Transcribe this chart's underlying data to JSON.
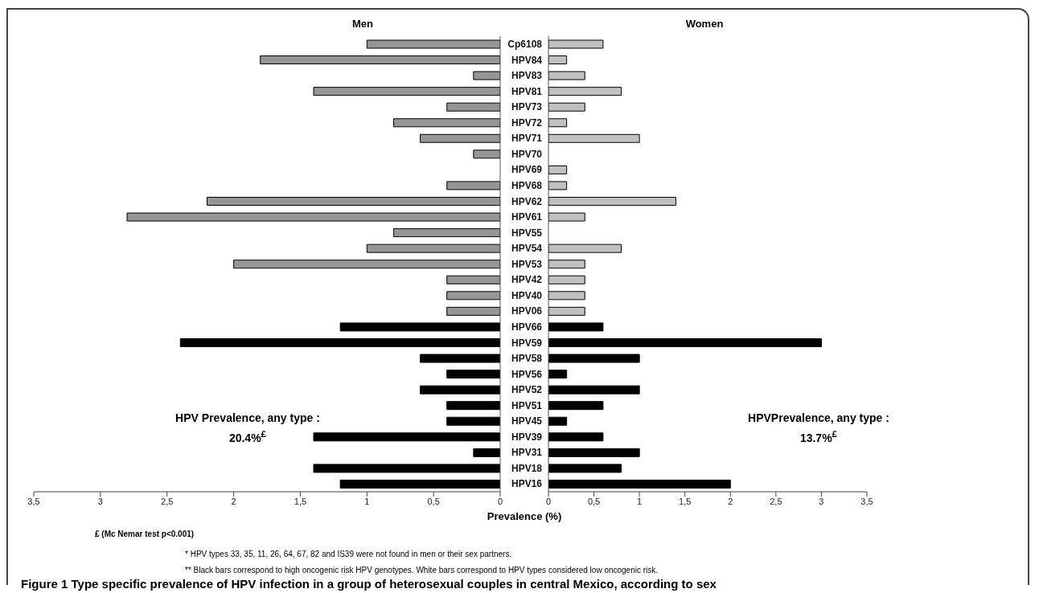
{
  "chart_data": [
    {
      "type": "bar",
      "orientation": "horizontal",
      "title": "Men",
      "tick_labels": "x",
      "values": [
        1.0,
        1.8,
        0.2,
        1.4,
        0.4,
        0.8,
        0.6,
        0.2,
        0,
        0.4,
        2.2,
        2.8,
        0.8,
        1.0,
        2.0,
        0.4,
        0.4,
        0.4,
        1.2,
        2.4,
        0.6,
        0.4,
        0.6,
        0.4,
        0.4,
        1.4,
        0.2,
        1.4,
        1.2
      ],
      "colors": [
        "#969696",
        "#969696",
        "#969696",
        "#969696",
        "#969696",
        "#969696",
        "#969696",
        "#969696",
        "#969696",
        "#969696",
        "#969696",
        "#969696",
        "#969696",
        "#969696",
        "#969696",
        "#969696",
        "#969696",
        "#969696",
        "#000000",
        "#000000",
        "#000000",
        "#000000",
        "#000000",
        "#000000",
        "#000000",
        "#000000",
        "#000000",
        "#000000",
        "#000000"
      ],
      "xlim": [
        3.5,
        0
      ],
      "xticks": [
        {
          "value": 3.5,
          "label": "3,5"
        },
        3,
        {
          "value": 2.5,
          "label": "2,5"
        },
        2,
        {
          "value": 1.5,
          "label": "1,5"
        },
        1,
        {
          "value": 0.5,
          "label": "0,5"
        },
        0
      ],
      "annotations": [
        "HPV Prevalence, any type : 20.4%$^{£}$",
        "£  (Mc Nemar test  p<0.001)",
        "* HPV types  33, 35, 11, 26, 64,  67, 82 and IS39 were not found in men or their sex partners.",
        "** Black bars correspond to high oncogenic risk HPV genotypes. White bars correspond  to HPV types considered  low oncogenic risk.",
        "Figure 1 Type specific prevalence of HPV infection in a group of heterosexual couples in central Mexico, according to sex"
      ]
    },
    {
      "type": "bar",
      "orientation": "horizontal",
      "title": "Women",
      "xlabel": "Prevalence (%)",
      "categories": [
        "Cp6108",
        "HPV84",
        "HPV83",
        "HPV81",
        "HPV73",
        "HPV72",
        "HPV71",
        "HPV70",
        "HPV69",
        "HPV68",
        "HPV62",
        "HPV61",
        "HPV55",
        "HPV54",
        "HPV53",
        "HPV42",
        "HPV40",
        "HPV06",
        "HPV66",
        "HPV59",
        "HPV58",
        "HPV56",
        "HPV52",
        "HPV51",
        "HPV45",
        "HPV39",
        "HPV31",
        "HPV18",
        "HPV16"
      ],
      "values": [
        0.6,
        0.2,
        0.4,
        0.8,
        0.4,
        0.2,
        1.0,
        0,
        0.2,
        0.2,
        1.4,
        0.4,
        0,
        0.8,
        0.4,
        0.4,
        0.4,
        0.4,
        0.6,
        3.0,
        1.0,
        0.2,
        1.0,
        0.6,
        0.2,
        0.6,
        1.0,
        0.8,
        2.0
      ],
      "colors": [
        "#c0c0c0",
        "#c0c0c0",
        "#c0c0c0",
        "#c0c0c0",
        "#c0c0c0",
        "#c0c0c0",
        "#c0c0c0",
        "#c0c0c0",
        "#c0c0c0",
        "#c0c0c0",
        "#c0c0c0",
        "#c0c0c0",
        "#c0c0c0",
        "#c0c0c0",
        "#c0c0c0",
        "#c0c0c0",
        "#c0c0c0",
        "#c0c0c0",
        "#000000",
        "#000000",
        "#000000",
        "#000000",
        "#000000",
        "#000000",
        "#000000",
        "#000000",
        "#000000",
        "#000000",
        "#000000"
      ],
      "xlim": [
        0,
        3.5
      ],
      "xticks": [
        0,
        {
          "value": 0.5,
          "label": "0,5"
        },
        1,
        {
          "value": 1.5,
          "label": "1,5"
        },
        2,
        {
          "value": 2.5,
          "label": "2,5"
        },
        3,
        {
          "value": 3.5,
          "label": "3,5"
        }
      ],
      "annotations": [
        "HPVPrevalence, any type : 13.7%$^{£}$"
      ]
    }
  ]
}
